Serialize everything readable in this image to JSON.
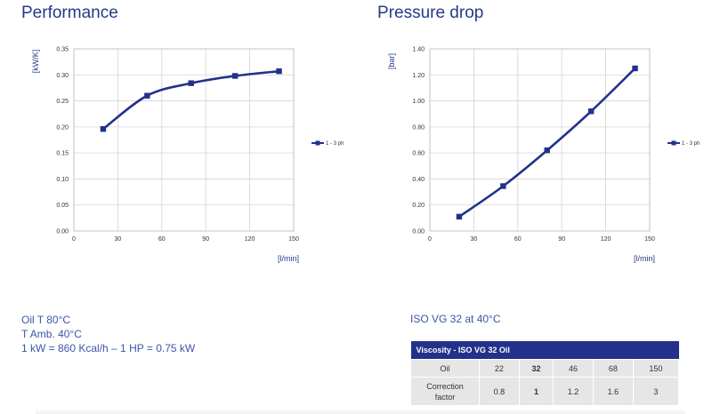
{
  "titles": {
    "performance": "Performance",
    "pressure_drop": "Pressure drop"
  },
  "chart_data": [
    {
      "id": "performance",
      "type": "line",
      "title": "Performance",
      "ylabel": "[kW/K]",
      "xlabel": "[l/min]",
      "xlim": [
        0,
        150
      ],
      "ylim": [
        0,
        0.35
      ],
      "xticks": [
        0,
        30,
        60,
        90,
        120,
        150
      ],
      "yticks": [
        "0.00",
        "0.05",
        "0.10",
        "0.15",
        "0.20",
        "0.25",
        "0.30",
        "0.35"
      ],
      "grid": true,
      "legend_position": "right",
      "color": "#22318a",
      "series": [
        {
          "name": "1 - 3 ph",
          "x": [
            20,
            50,
            80,
            110,
            140
          ],
          "y": [
            0.196,
            0.26,
            0.284,
            0.298,
            0.307
          ]
        }
      ]
    },
    {
      "id": "pressure_drop",
      "type": "line",
      "title": "Pressure drop",
      "ylabel": "[bar]",
      "xlabel": "[l/min]",
      "xlim": [
        0,
        150
      ],
      "ylim": [
        0,
        1.4
      ],
      "xticks": [
        0,
        30,
        60,
        90,
        120,
        150
      ],
      "yticks": [
        "0.00",
        "0.20",
        "0.40",
        "0.60",
        "0.80",
        "1.00",
        "1.20",
        "1.40"
      ],
      "grid": true,
      "legend_position": "right",
      "color": "#22318a",
      "series": [
        {
          "name": "1 - 3 ph",
          "x": [
            20,
            50,
            80,
            110,
            140
          ],
          "y": [
            0.11,
            0.345,
            0.62,
            0.92,
            1.25
          ]
        }
      ]
    }
  ],
  "notes": {
    "line1": "Oil T 80°C",
    "line2": "T Amb. 40°C",
    "line3": "1 kW = 860 Kcal/h – 1 HP = 0.75 kW"
  },
  "iso_title": "ISO VG 32 at 40°C",
  "viscosity_table": {
    "header": "Viscosity - ISO VG 32 Oil",
    "row1_label": "Oil",
    "row1_values": [
      "22",
      "32",
      "46",
      "68",
      "150"
    ],
    "row2_label_line1": "Correction",
    "row2_label_line2": "factor",
    "row2_values": [
      "0.8",
      "1",
      "1.2",
      "1.6",
      "3"
    ]
  }
}
